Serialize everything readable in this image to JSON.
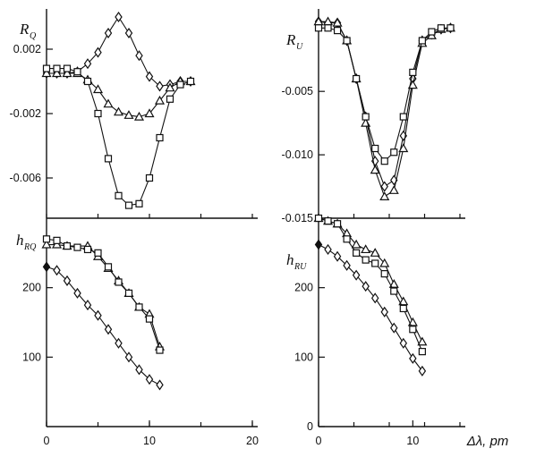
{
  "chart_data": [
    {
      "id": "rq",
      "type": "line",
      "label_main": "R",
      "label_sub": "Q",
      "xlim": [
        0,
        20
      ],
      "ylim": [
        -0.0085,
        0.0045
      ],
      "yticks": [
        0.002,
        -0.002,
        -0.006
      ],
      "ytick_labels": [
        "0.002",
        "-0.002",
        "-0.006"
      ],
      "series": [
        {
          "marker": "diamond",
          "x": [
            0,
            1,
            2,
            3,
            4,
            5,
            6,
            7,
            8,
            9,
            10,
            11,
            12,
            13,
            14
          ],
          "y": [
            0.0005,
            0.0005,
            0.0005,
            0.0006,
            0.0011,
            0.0018,
            0.003,
            0.004,
            0.003,
            0.0016,
            0.0003,
            -0.0003,
            -0.0002,
            0.0,
            0.0
          ]
        },
        {
          "marker": "triangle",
          "x": [
            0,
            1,
            2,
            3,
            4,
            5,
            6,
            7,
            8,
            9,
            10,
            11,
            12,
            13,
            14
          ],
          "y": [
            0.0005,
            0.0005,
            0.0005,
            0.0005,
            0.0001,
            -0.0005,
            -0.0014,
            -0.0019,
            -0.0021,
            -0.0022,
            -0.002,
            -0.0012,
            -0.0004,
            0.0,
            0.0
          ]
        },
        {
          "marker": "square",
          "x": [
            0,
            1,
            2,
            3,
            4,
            5,
            6,
            7,
            8,
            9,
            10,
            11,
            12,
            13,
            14
          ],
          "y": [
            0.0008,
            0.0008,
            0.0008,
            0.0006,
            0.0,
            -0.002,
            -0.0048,
            -0.0071,
            -0.0077,
            -0.0076,
            -0.006,
            -0.0035,
            -0.0011,
            -0.0002,
            0.0
          ]
        }
      ]
    },
    {
      "id": "ru",
      "type": "line",
      "label_main": "R",
      "label_sub": "U",
      "xlim": [
        0,
        15
      ],
      "ylim": [
        -0.015,
        0.0015
      ],
      "yticks": [
        -0.005,
        -0.01,
        -0.015
      ],
      "ytick_labels": [
        "-0.005",
        "-0.010",
        "-0.015"
      ],
      "series": [
        {
          "marker": "diamond",
          "x": [
            0,
            1,
            2,
            3,
            4,
            5,
            6,
            7,
            8,
            9,
            10,
            11,
            12,
            13,
            14
          ],
          "y": [
            0.0005,
            0.0004,
            0.0004,
            -0.001,
            -0.004,
            -0.007,
            -0.0105,
            -0.0125,
            -0.012,
            -0.0085,
            -0.004,
            -0.001,
            -0.0005,
            -0.0001,
            0.0
          ]
        },
        {
          "marker": "triangle",
          "x": [
            0,
            1,
            2,
            3,
            4,
            5,
            6,
            7,
            8,
            9,
            10,
            11,
            12,
            13,
            14
          ],
          "y": [
            0.0005,
            0.0005,
            0.0004,
            -0.001,
            -0.004,
            -0.0075,
            -0.0112,
            -0.0133,
            -0.0128,
            -0.0095,
            -0.0045,
            -0.0012,
            -0.0006,
            -0.0001,
            0.0
          ]
        },
        {
          "marker": "square",
          "x": [
            0,
            1,
            2,
            3,
            4,
            5,
            6,
            7,
            8,
            9,
            10,
            11,
            12,
            13,
            14
          ],
          "y": [
            0.0,
            0.0,
            -0.0002,
            -0.001,
            -0.004,
            -0.007,
            -0.0095,
            -0.0105,
            -0.0098,
            -0.007,
            -0.0035,
            -0.001,
            -0.0003,
            0.0,
            0.0
          ]
        }
      ]
    },
    {
      "id": "hrq",
      "type": "line",
      "label_main": "h",
      "label_sub": "RQ",
      "xlim": [
        0,
        20
      ],
      "ylim": [
        0,
        300
      ],
      "xticks": [
        0,
        10,
        20
      ],
      "xtick_labels": [
        "0",
        "10",
        "20"
      ],
      "yticks": [
        100,
        200
      ],
      "ytick_labels": [
        "100",
        "200"
      ],
      "series": [
        {
          "marker": "triangle",
          "x": [
            0,
            1,
            2,
            4,
            5,
            6,
            7,
            8,
            9,
            10,
            11
          ],
          "y": [
            262,
            262,
            260,
            260,
            245,
            228,
            210,
            192,
            172,
            162,
            115
          ]
        },
        {
          "marker": "square",
          "x": [
            0,
            1,
            2,
            3,
            4,
            5,
            6,
            7,
            8,
            9,
            10,
            11
          ],
          "y": [
            270,
            268,
            260,
            258,
            255,
            250,
            230,
            208,
            192,
            172,
            155,
            110
          ]
        },
        {
          "marker": "diamond",
          "x": [
            0,
            1,
            2,
            3,
            4,
            5,
            6,
            7,
            8,
            9,
            10,
            11
          ],
          "y": [
            230,
            225,
            210,
            192,
            175,
            160,
            140,
            120,
            100,
            82,
            68,
            60
          ]
        }
      ]
    },
    {
      "id": "hru",
      "type": "line",
      "label_main": "h",
      "label_sub": "RU",
      "xlim": [
        0,
        15
      ],
      "ylim": [
        0,
        300
      ],
      "xticks": [
        0,
        10
      ],
      "xtick_labels": [
        "0",
        "10"
      ],
      "xlabel": "Δλ, pm",
      "yticks": [
        0,
        100,
        200
      ],
      "ytick_labels": [
        "0",
        "100",
        "200"
      ],
      "series": [
        {
          "marker": "triangle",
          "x": [
            0,
            1,
            2,
            3,
            4,
            5,
            6,
            7,
            8,
            9,
            10,
            11
          ],
          "y": [
            300,
            296,
            292,
            278,
            262,
            255,
            250,
            235,
            205,
            180,
            150,
            122
          ]
        },
        {
          "marker": "square",
          "x": [
            0,
            1,
            2,
            3,
            4,
            5,
            6,
            7,
            8,
            9,
            10,
            11
          ],
          "y": [
            300,
            296,
            292,
            270,
            250,
            240,
            235,
            220,
            195,
            170,
            140,
            108
          ]
        },
        {
          "marker": "diamond",
          "x": [
            0,
            1,
            2,
            3,
            4,
            5,
            6,
            7,
            8,
            9,
            10,
            11
          ],
          "y": [
            262,
            255,
            245,
            232,
            218,
            202,
            185,
            165,
            142,
            120,
            98,
            80
          ]
        }
      ]
    }
  ]
}
